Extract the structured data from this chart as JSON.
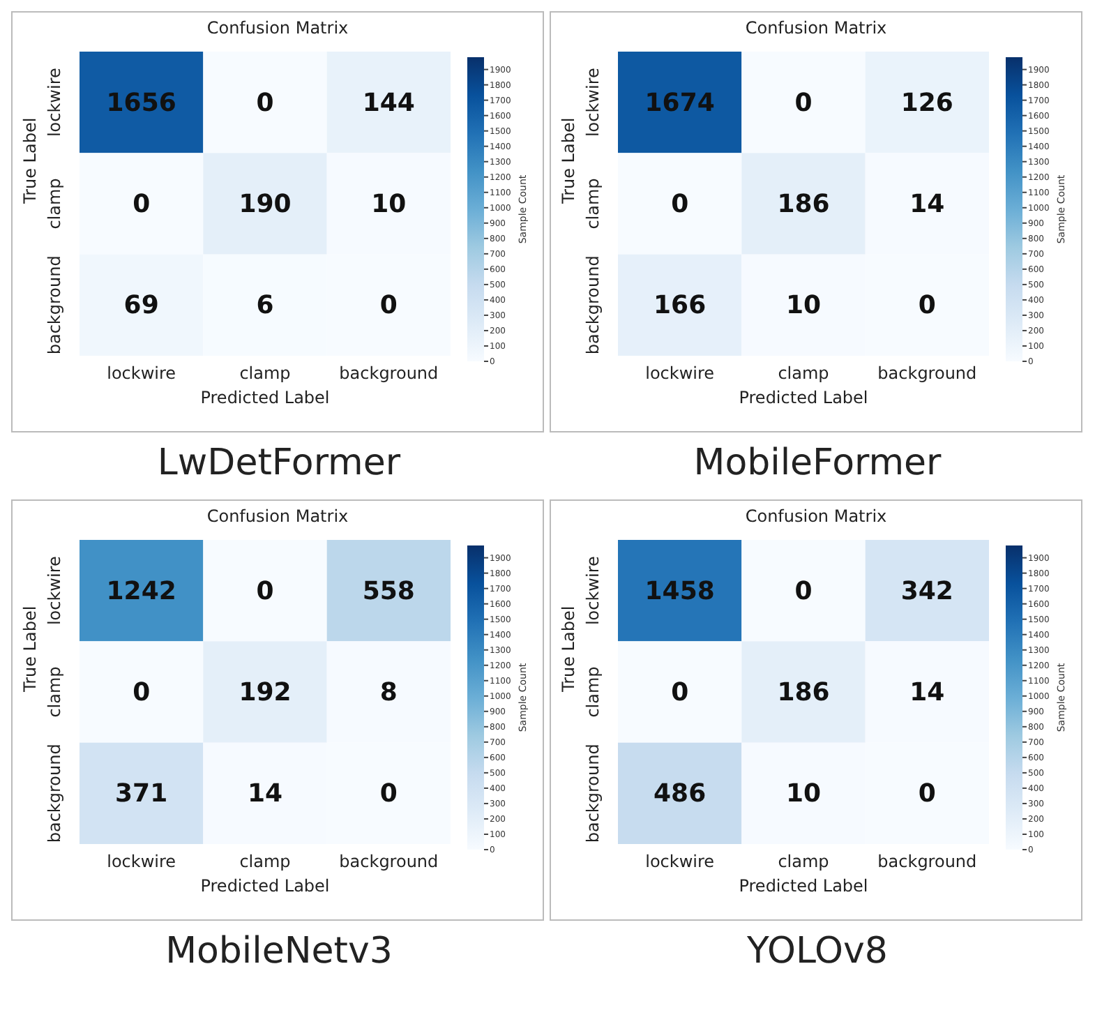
{
  "chart_data": [
    {
      "type": "heatmap",
      "title": "Confusion Matrix",
      "xlabel": "Predicted Label",
      "ylabel": "True Label",
      "clabel": "Sample Count",
      "categories": [
        "lockwire",
        "clamp",
        "background"
      ],
      "y_categories": [
        "lockwire",
        "clamp",
        "background"
      ],
      "cells": [
        [
          1656,
          0,
          144
        ],
        [
          0,
          190,
          10
        ],
        [
          69,
          6,
          0
        ]
      ],
      "clim": [
        0,
        1980
      ],
      "cticks": [
        0,
        100,
        200,
        300,
        400,
        500,
        600,
        700,
        800,
        900,
        1000,
        1100,
        1200,
        1300,
        1400,
        1500,
        1600,
        1700,
        1800,
        1900
      ],
      "data_labels": true,
      "annotations": [
        "LwDetFormer"
      ]
    },
    {
      "type": "heatmap",
      "title": "Confusion Matrix",
      "xlabel": "Predicted Label",
      "ylabel": "True Label",
      "clabel": "Sample Count",
      "categories": [
        "lockwire",
        "clamp",
        "background"
      ],
      "y_categories": [
        "lockwire",
        "clamp",
        "background"
      ],
      "cells": [
        [
          1674,
          0,
          126
        ],
        [
          0,
          186,
          14
        ],
        [
          166,
          10,
          0
        ]
      ],
      "clim": [
        0,
        1980
      ],
      "cticks": [
        0,
        100,
        200,
        300,
        400,
        500,
        600,
        700,
        800,
        900,
        1000,
        1100,
        1200,
        1300,
        1400,
        1500,
        1600,
        1700,
        1800,
        1900
      ],
      "data_labels": true,
      "annotations": [
        "MobileFormer"
      ]
    },
    {
      "type": "heatmap",
      "title": "Confusion Matrix",
      "xlabel": "Predicted Label",
      "ylabel": "True Label",
      "clabel": "Sample Count",
      "categories": [
        "lockwire",
        "clamp",
        "background"
      ],
      "y_categories": [
        "lockwire",
        "clamp",
        "background"
      ],
      "cells": [
        [
          1242,
          0,
          558
        ],
        [
          0,
          192,
          8
        ],
        [
          371,
          14,
          0
        ]
      ],
      "clim": [
        0,
        1980
      ],
      "cticks": [
        0,
        100,
        200,
        300,
        400,
        500,
        600,
        700,
        800,
        900,
        1000,
        1100,
        1200,
        1300,
        1400,
        1500,
        1600,
        1700,
        1800,
        1900
      ],
      "data_labels": true,
      "annotations": [
        "MobileNetv3"
      ]
    },
    {
      "type": "heatmap",
      "title": "Confusion Matrix",
      "xlabel": "Predicted Label",
      "ylabel": "True Label",
      "clabel": "Sample Count",
      "categories": [
        "lockwire",
        "clamp",
        "background"
      ],
      "y_categories": [
        "lockwire",
        "clamp",
        "background"
      ],
      "cells": [
        [
          1458,
          0,
          342
        ],
        [
          0,
          186,
          14
        ],
        [
          486,
          10,
          0
        ]
      ],
      "clim": [
        0,
        1980
      ],
      "cticks": [
        0,
        100,
        200,
        300,
        400,
        500,
        600,
        700,
        800,
        900,
        1000,
        1100,
        1200,
        1300,
        1400,
        1500,
        1600,
        1700,
        1800,
        1900
      ],
      "data_labels": true,
      "annotations": [
        "YOLOv8"
      ]
    }
  ]
}
